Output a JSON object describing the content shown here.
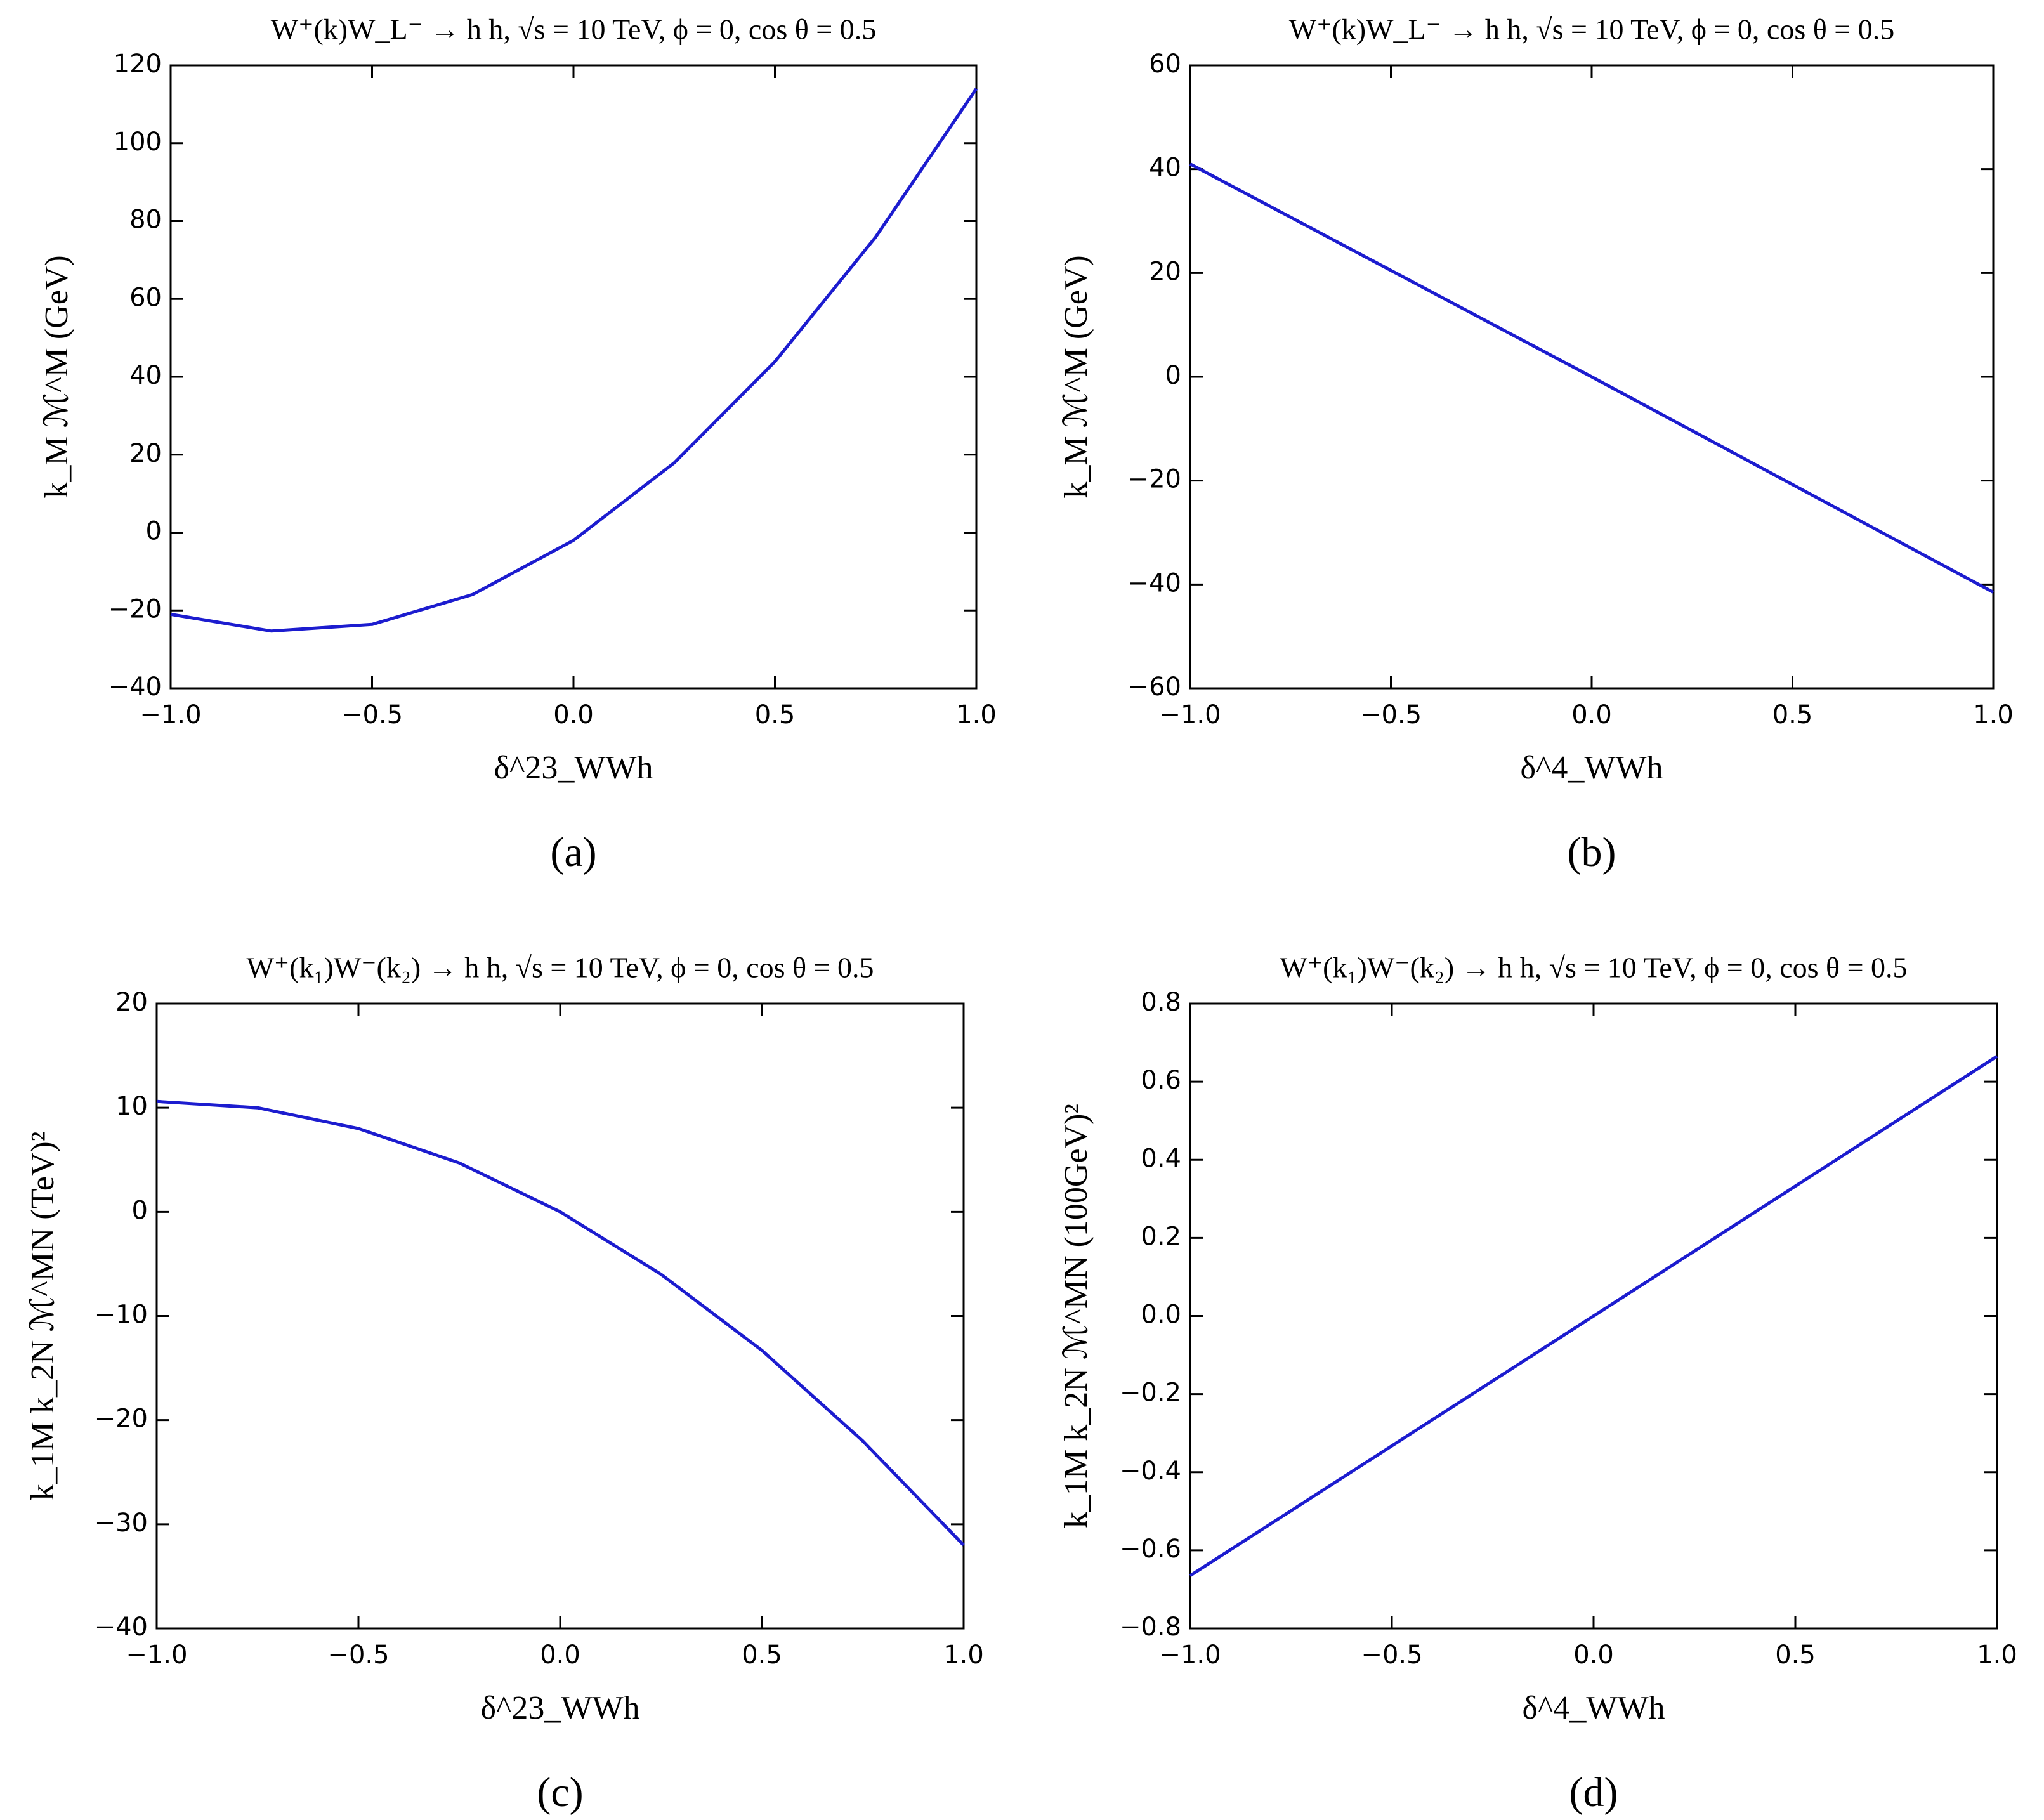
{
  "chart_data": [
    {
      "type": "line",
      "panel_label": "(a)",
      "title": "W⁺(k)W_L⁻ → h h,  √s = 10 TeV,  ϕ = 0, cos θ = 0.5",
      "x_label": "δ^23_WWh",
      "y_label": "k_M ℳ^M (GeV)",
      "xlim": [
        -1,
        1
      ],
      "ylim": [
        -40,
        120
      ],
      "xticks": [
        {
          "value": -1,
          "label": "−1.0"
        },
        {
          "value": -0.5,
          "label": "−0.5"
        },
        {
          "value": 0,
          "label": "0.0"
        },
        {
          "value": 0.5,
          "label": "0.5"
        },
        {
          "value": 1,
          "label": "1.0"
        }
      ],
      "yticks": [
        {
          "value": -40,
          "label": "−40"
        },
        {
          "value": -20,
          "label": "−20"
        },
        0,
        20,
        40,
        60,
        80,
        100,
        120
      ],
      "x": [
        -1,
        -0.75,
        -0.5,
        -0.25,
        0,
        0.25,
        0.5,
        0.75,
        1
      ],
      "series": [
        {
          "color": "#1c1ccf",
          "values": [
            -21,
            -25.3,
            -23.6,
            -15.9,
            -2,
            17.9,
            43.9,
            75.9,
            114
          ]
        }
      ]
    },
    {
      "type": "line",
      "panel_label": "(b)",
      "title": "W⁺(k)W_L⁻ → h h,  √s = 10 TeV,  ϕ = 0, cos θ = 0.5",
      "x_label": "δ^4_WWh",
      "y_label": "k_M ℳ^M (GeV)",
      "xlim": [
        -1,
        1
      ],
      "ylim": [
        -60,
        60
      ],
      "xticks": [
        {
          "value": -1,
          "label": "−1.0"
        },
        {
          "value": -0.5,
          "label": "−0.5"
        },
        {
          "value": 0,
          "label": "0.0"
        },
        {
          "value": 0.5,
          "label": "0.5"
        },
        {
          "value": 1,
          "label": "1.0"
        }
      ],
      "yticks": [
        {
          "value": -60,
          "label": "−60"
        },
        {
          "value": -40,
          "label": "−40"
        },
        {
          "value": -20,
          "label": "−20"
        },
        0,
        20,
        40,
        60
      ],
      "x": [
        -1,
        0,
        1
      ],
      "series": [
        {
          "color": "#1c1ccf",
          "values": [
            41,
            0,
            -41.5
          ]
        }
      ]
    },
    {
      "type": "line",
      "panel_label": "(c)",
      "title": "W⁺(k₁)W⁻(k₂) → h h,  √s = 10 TeV,  ϕ = 0, cos θ = 0.5",
      "x_label": "δ^23_WWh",
      "y_label": "k_1M k_2N ℳ^MN (TeV)²",
      "xlim": [
        -1,
        1
      ],
      "ylim": [
        -40,
        20
      ],
      "xticks": [
        {
          "value": -1,
          "label": "−1.0"
        },
        {
          "value": -0.5,
          "label": "−0.5"
        },
        {
          "value": 0,
          "label": "0.0"
        },
        {
          "value": 0.5,
          "label": "0.5"
        },
        {
          "value": 1,
          "label": "1.0"
        }
      ],
      "yticks": [
        {
          "value": -40,
          "label": "−40"
        },
        {
          "value": -30,
          "label": "−30"
        },
        {
          "value": -20,
          "label": "−20"
        },
        {
          "value": -10,
          "label": "−10"
        },
        0,
        10,
        20
      ],
      "x": [
        -1,
        -0.75,
        -0.5,
        -0.25,
        0,
        0.25,
        0.5,
        0.75,
        1
      ],
      "series": [
        {
          "color": "#1c1ccf",
          "values": [
            10.6,
            10.0,
            8.0,
            4.7,
            0,
            -6.0,
            -13.3,
            -22.0,
            -32
          ]
        }
      ]
    },
    {
      "type": "line",
      "panel_label": "(d)",
      "title": "W⁺(k₁)W⁻(k₂) → h h,  √s = 10 TeV,  ϕ = 0, cos θ = 0.5",
      "x_label": "δ^4_WWh",
      "y_label": "k_1M k_2N ℳ^MN (100GeV)²",
      "xlim": [
        -1,
        1
      ],
      "ylim": [
        -0.8,
        0.8
      ],
      "xticks": [
        {
          "value": -1,
          "label": "−1.0"
        },
        {
          "value": -0.5,
          "label": "−0.5"
        },
        {
          "value": 0,
          "label": "0.0"
        },
        {
          "value": 0.5,
          "label": "0.5"
        },
        {
          "value": 1,
          "label": "1.0"
        }
      ],
      "yticks": [
        {
          "value": -0.8,
          "label": "−0.8"
        },
        {
          "value": -0.6,
          "label": "−0.6"
        },
        {
          "value": -0.4,
          "label": "−0.4"
        },
        {
          "value": -0.2,
          "label": "−0.2"
        },
        {
          "value": 0,
          "label": "0.0"
        },
        0.2,
        0.4,
        0.6,
        0.8
      ],
      "x": [
        -1,
        0,
        1
      ],
      "series": [
        {
          "color": "#1c1ccf",
          "values": [
            -0.665,
            0,
            0.665
          ]
        }
      ]
    }
  ]
}
